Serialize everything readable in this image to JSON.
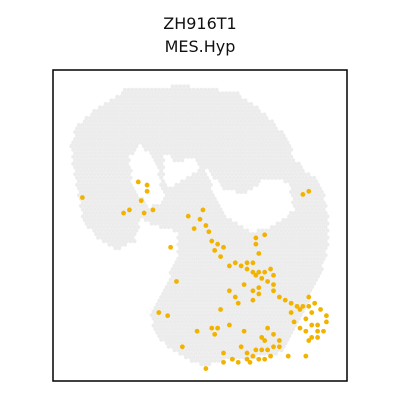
{
  "chart_data": {
    "type": "scatter",
    "title": "ZH916T1",
    "subtitle": "MES.Hyp",
    "xlim": [
      0,
      100
    ],
    "ylim": [
      0,
      100
    ],
    "grid": false,
    "legend": "none",
    "colors": {
      "background_spot": "#ececec",
      "highlight_spot": "#f2b300",
      "frame": "#000000"
    },
    "tissue_regions": [
      [
        [
          22,
          92
        ],
        [
          25,
          94
        ],
        [
          45,
          95
        ],
        [
          62,
          93
        ],
        [
          70,
          88
        ],
        [
          76,
          82
        ],
        [
          80,
          78
        ],
        [
          82,
          72
        ],
        [
          85,
          68
        ],
        [
          90,
          65
        ],
        [
          92,
          60
        ],
        [
          94,
          50
        ],
        [
          93,
          40
        ],
        [
          90,
          32
        ],
        [
          88,
          28
        ],
        [
          85,
          22
        ],
        [
          82,
          15
        ],
        [
          78,
          10
        ],
        [
          75,
          8
        ],
        [
          60,
          7
        ],
        [
          52,
          5
        ],
        [
          48,
          6
        ],
        [
          40,
          10
        ],
        [
          35,
          15
        ],
        [
          33,
          22
        ],
        [
          38,
          30
        ],
        [
          42,
          40
        ],
        [
          42,
          48
        ],
        [
          35,
          50
        ],
        [
          30,
          52
        ],
        [
          28,
          45
        ],
        [
          22,
          42
        ],
        [
          15,
          46
        ],
        [
          10,
          52
        ],
        [
          8,
          62
        ],
        [
          6,
          75
        ],
        [
          8,
          82
        ],
        [
          15,
          88
        ]
      ],
      [
        [
          38,
          74
        ],
        [
          42,
          70
        ],
        [
          48,
          72
        ],
        [
          50,
          68
        ],
        [
          40,
          62
        ],
        [
          38,
          65
        ]
      ],
      [
        [
          52,
          68
        ],
        [
          58,
          62
        ],
        [
          65,
          60
        ],
        [
          72,
          65
        ],
        [
          80,
          64
        ],
        [
          82,
          55
        ],
        [
          75,
          50
        ],
        [
          68,
          48
        ],
        [
          60,
          52
        ],
        [
          55,
          60
        ]
      ],
      [
        [
          30,
          76
        ],
        [
          35,
          70
        ],
        [
          38,
          58
        ],
        [
          33,
          56
        ],
        [
          27,
          62
        ],
        [
          26,
          72
        ]
      ]
    ],
    "highlight_points": [
      [
        30,
        58
      ],
      [
        32,
        61
      ],
      [
        29,
        64
      ],
      [
        32,
        63
      ],
      [
        34,
        55
      ],
      [
        26,
        55
      ],
      [
        24,
        54
      ],
      [
        10,
        59
      ],
      [
        31,
        54
      ],
      [
        50,
        52
      ],
      [
        51,
        55
      ],
      [
        52,
        50
      ],
      [
        53,
        48
      ],
      [
        54,
        45
      ],
      [
        56,
        44
      ],
      [
        55,
        42
      ],
      [
        57,
        40
      ],
      [
        58,
        43
      ],
      [
        46,
        53
      ],
      [
        48,
        49
      ],
      [
        60,
        37
      ],
      [
        62,
        38
      ],
      [
        64,
        37
      ],
      [
        66,
        38
      ],
      [
        68,
        38
      ],
      [
        66,
        36
      ],
      [
        68,
        35
      ],
      [
        70,
        35
      ],
      [
        72,
        35
      ],
      [
        74,
        36
      ],
      [
        75,
        34
      ],
      [
        73,
        32
      ],
      [
        71,
        33
      ],
      [
        70,
        30
      ],
      [
        70,
        28
      ],
      [
        68,
        29
      ],
      [
        69,
        34
      ],
      [
        75,
        31
      ],
      [
        75,
        29
      ],
      [
        77,
        27
      ],
      [
        79,
        26
      ],
      [
        81,
        25
      ],
      [
        83,
        24
      ],
      [
        85,
        24
      ],
      [
        87,
        24
      ],
      [
        88,
        22
      ],
      [
        86,
        20
      ],
      [
        88,
        18
      ],
      [
        90,
        18
      ],
      [
        90,
        16
      ],
      [
        92,
        16
      ],
      [
        93,
        19
      ],
      [
        93,
        21
      ],
      [
        91,
        23
      ],
      [
        89,
        25
      ],
      [
        87,
        27
      ],
      [
        84,
        23
      ],
      [
        81,
        22
      ],
      [
        82,
        19
      ],
      [
        84,
        17
      ],
      [
        86,
        16
      ],
      [
        88,
        14
      ],
      [
        90,
        14
      ],
      [
        87,
        13
      ],
      [
        69,
        44
      ],
      [
        69,
        46
      ],
      [
        72,
        47
      ],
      [
        70,
        41
      ],
      [
        65,
        31
      ],
      [
        68,
        26
      ],
      [
        62,
        27
      ],
      [
        60,
        29
      ],
      [
        63,
        25
      ],
      [
        60,
        18
      ],
      [
        65,
        16
      ],
      [
        64,
        11
      ],
      [
        66,
        9
      ],
      [
        68,
        8
      ],
      [
        70,
        7
      ],
      [
        72,
        7
      ],
      [
        74,
        8
      ],
      [
        73,
        10
      ],
      [
        75,
        11
      ],
      [
        77,
        11
      ],
      [
        77,
        13
      ],
      [
        75,
        15
      ],
      [
        73,
        17
      ],
      [
        71,
        14
      ],
      [
        69,
        10
      ],
      [
        71,
        10
      ],
      [
        72,
        13
      ],
      [
        67,
        6
      ],
      [
        63,
        6
      ],
      [
        61,
        7
      ],
      [
        58,
        6
      ],
      [
        58,
        9
      ],
      [
        52,
        4
      ],
      [
        55,
        15
      ],
      [
        56,
        17
      ],
      [
        54,
        17
      ],
      [
        44,
        11
      ],
      [
        49,
        16
      ],
      [
        40,
        43
      ],
      [
        57,
        23
      ],
      [
        36,
        22
      ],
      [
        39,
        21
      ],
      [
        61,
        7
      ],
      [
        66,
        7
      ],
      [
        80,
        8
      ],
      [
        86,
        8
      ],
      [
        85,
        60
      ],
      [
        87,
        61
      ],
      [
        42,
        32
      ]
    ]
  }
}
